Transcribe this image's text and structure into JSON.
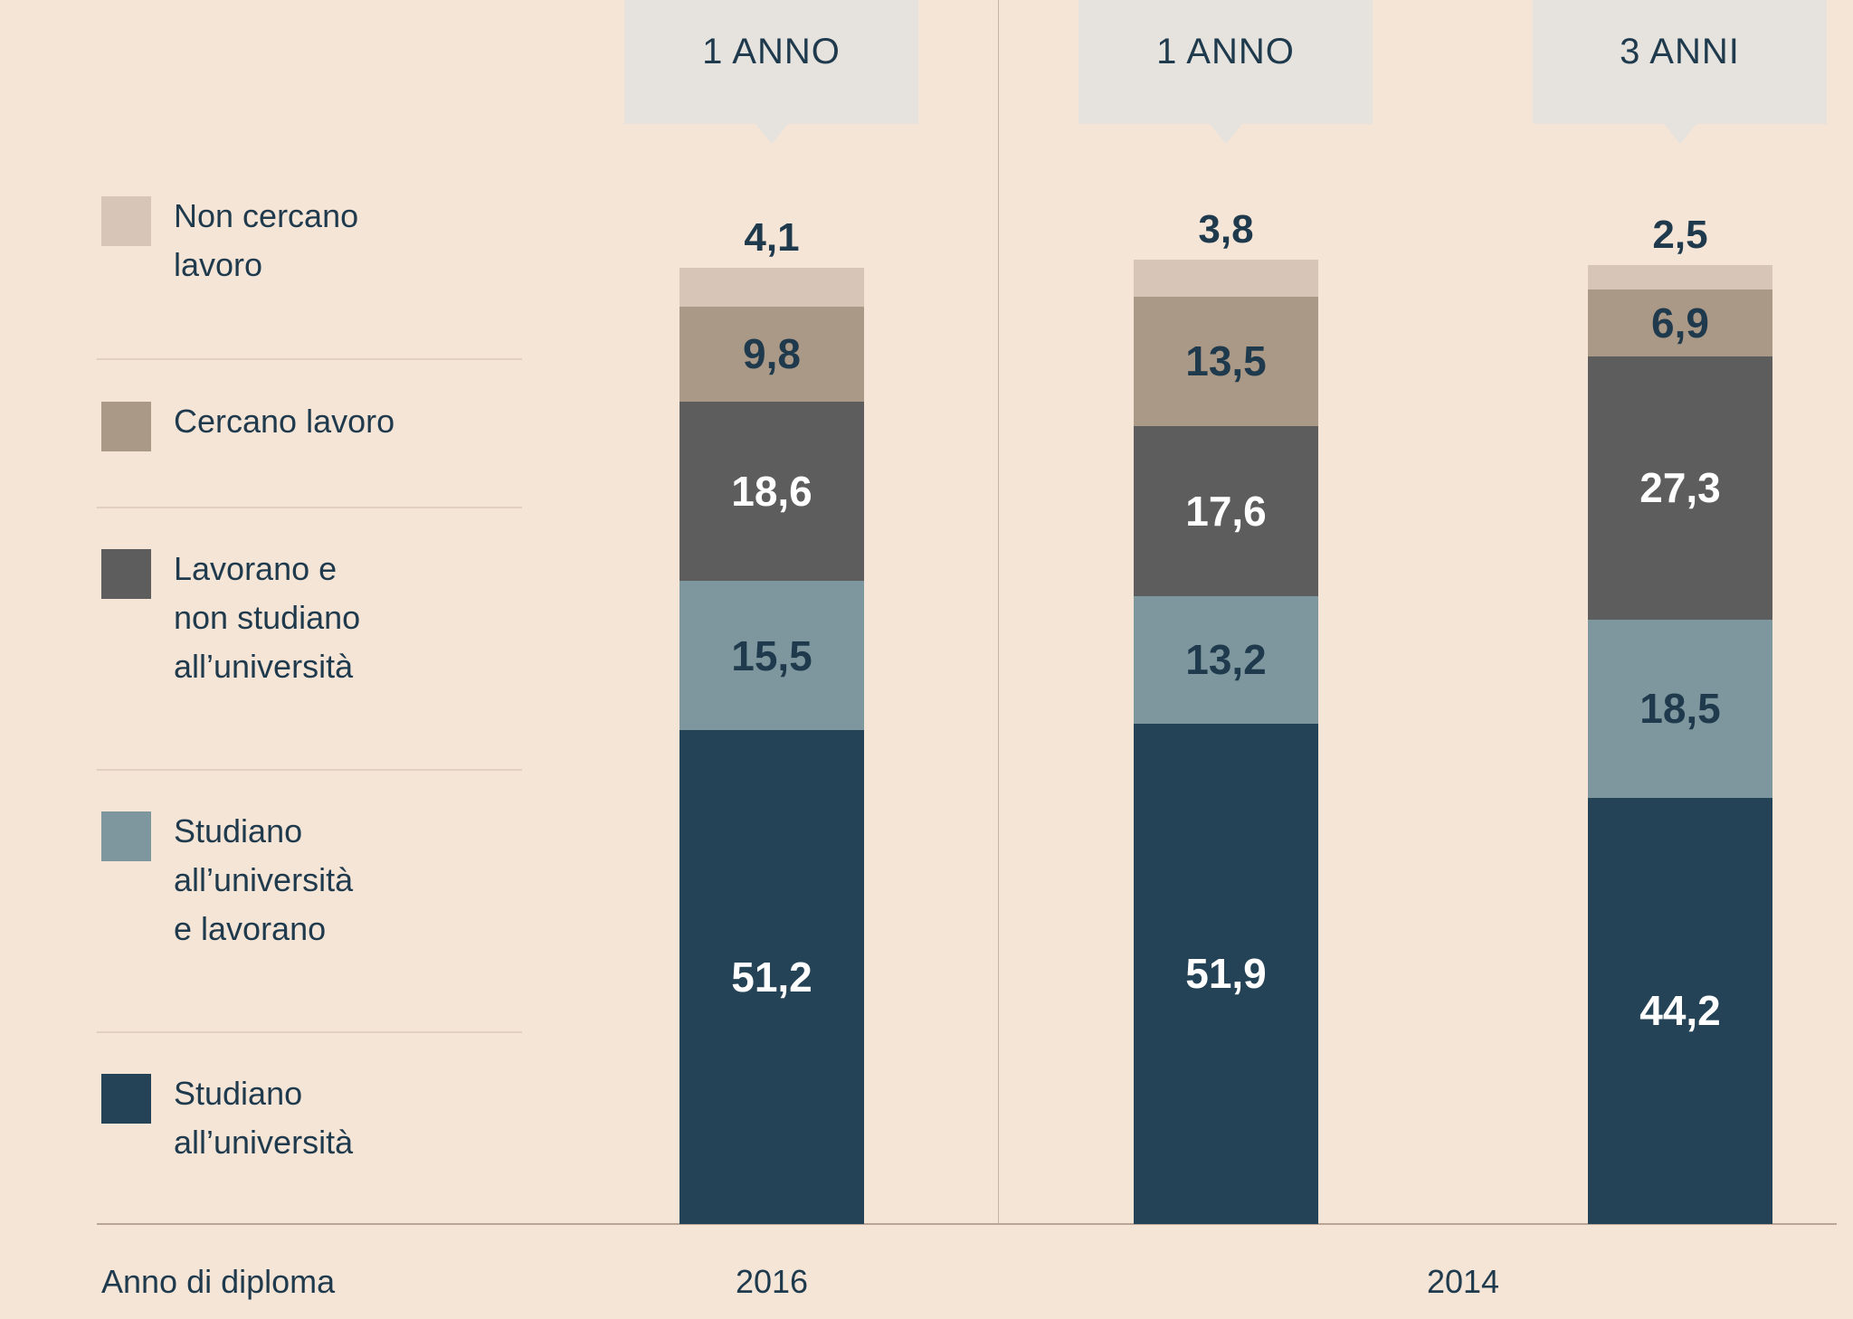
{
  "legend": [
    {
      "label": "Non cercano\nlavoro",
      "color": "#d7c6b7"
    },
    {
      "label": "Cercano lavoro",
      "color": "#ab9987"
    },
    {
      "label": "Lavorano e\nnon studiano\nall’università",
      "color": "#5d5d5d"
    },
    {
      "label": "Studiano\nall’università\ne lavorano",
      "color": "#7e979e"
    },
    {
      "label": "Studiano\nall’università",
      "color": "#244356"
    }
  ],
  "axis_title": "Anno di diploma",
  "x_groups": [
    "2016",
    "2014"
  ],
  "chart_data": {
    "type": "bar",
    "stacked": true,
    "categories": [
      "1 ANNO",
      "1 ANNO",
      "3 ANNI"
    ],
    "groups": [
      "2016",
      "2014",
      "2014"
    ],
    "series": [
      {
        "name": "Studiano all’università",
        "values": [
          51.2,
          51.9,
          44.2
        ],
        "color": "#244356",
        "label_color": "#ffffff",
        "labels": [
          "51,2",
          "51,9",
          "44,2"
        ]
      },
      {
        "name": "Studiano all’università e lavorano",
        "values": [
          15.5,
          13.2,
          18.5
        ],
        "color": "#7e979e",
        "label_color": "#1f3a4d",
        "labels": [
          "15,5",
          "13,2",
          "18,5"
        ]
      },
      {
        "name": "Lavorano e non studiano all’università",
        "values": [
          18.6,
          17.6,
          27.3
        ],
        "color": "#5d5d5d",
        "label_color": "#ffffff",
        "labels": [
          "18,6",
          "17,6",
          "27,3"
        ]
      },
      {
        "name": "Cercano lavoro",
        "values": [
          9.8,
          13.5,
          6.9
        ],
        "color": "#ab9987",
        "label_color": "#1f3a4d",
        "labels": [
          "9,8",
          "13,5",
          "6,9"
        ]
      },
      {
        "name": "Non cercano lavoro",
        "values": [
          4.1,
          3.8,
          2.5
        ],
        "color": "#d7c6b7",
        "label_color": "#1f3a4d",
        "labels": [
          "4,1",
          "3,8",
          "2,5"
        ],
        "label_position": "above"
      }
    ],
    "ylim": [
      0,
      100
    ],
    "xlabel": "Anno di diploma",
    "grid": false,
    "legend": "left"
  }
}
